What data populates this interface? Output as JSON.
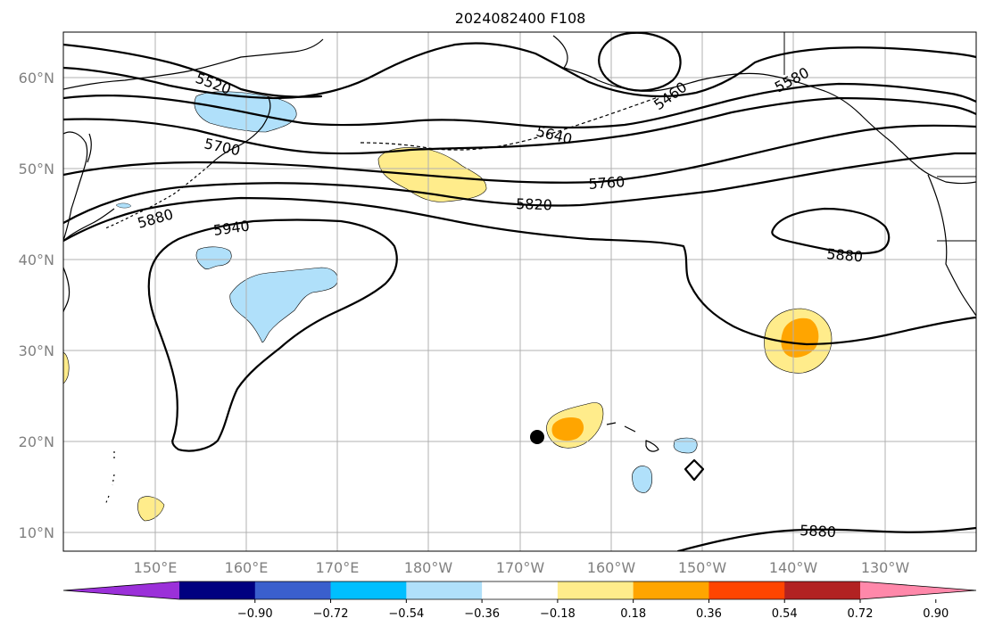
{
  "title": "2024082400 F108",
  "lat_labels": [
    "60°N",
    "50°N",
    "40°N",
    "30°N",
    "20°N",
    "10°N"
  ],
  "lon_labels": [
    "150°E",
    "160°E",
    "170°E",
    "180°W",
    "170°W",
    "160°W",
    "150°W",
    "140°W",
    "130°W"
  ],
  "contour_labels": [
    "5520",
    "5700",
    "5640",
    "5760",
    "5820",
    "5880",
    "5940",
    "5880",
    "5880",
    "5580",
    "5460"
  ],
  "colorbar": {
    "ticks": [
      "−0.90",
      "−0.72",
      "−0.54",
      "−0.36",
      "−0.18",
      "0.18",
      "0.36",
      "0.54",
      "0.72",
      "0.90"
    ],
    "colors": [
      "#9b30d9",
      "#000080",
      "#3a5fcd",
      "#00bfff",
      "#b0e0fa",
      "#ffffff",
      "#ffec8b",
      "#ffa500",
      "#ff4500",
      "#b22222",
      "#ff88aa"
    ]
  },
  "anomaly_colors": {
    "light_blue": "#b0e0fa",
    "yellow": "#ffec8b",
    "orange": "#ffa500"
  }
}
